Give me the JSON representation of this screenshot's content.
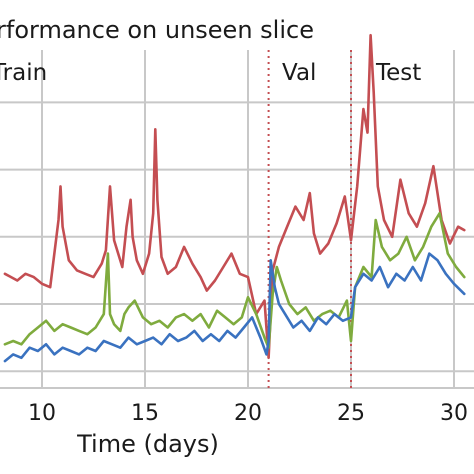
{
  "chart_data": {
    "type": "line",
    "title": "rformance on unseen slice",
    "xlabel": "Time (days)",
    "ylabel": "",
    "xlim": [
      8.2,
      30.5
    ],
    "ylim": [
      0,
      1
    ],
    "x_ticks": [
      10,
      15,
      20,
      25,
      30
    ],
    "x_tick_labels": [
      "10",
      "15",
      "20",
      "25",
      "30"
    ],
    "y_gridlines": [
      0.05,
      0.25,
      0.45,
      0.65,
      0.85
    ],
    "grid": true,
    "regions": [
      {
        "label": "Train",
        "x_start": 8.2,
        "x_end": 21.0
      },
      {
        "label": "Val",
        "x_start": 21.0,
        "x_end": 25.0
      },
      {
        "label": "Test",
        "x_start": 25.0,
        "x_end": 30.5
      }
    ],
    "boundaries": [
      21.0,
      25.0
    ],
    "boundary_color": "#c44e52",
    "series": [
      {
        "color": "#c44e52",
        "x": [
          8.2,
          8.5,
          8.8,
          9.2,
          9.6,
          10.0,
          10.4,
          10.8,
          10.9,
          11.0,
          11.3,
          11.7,
          12.1,
          12.5,
          12.9,
          13.1,
          13.3,
          13.5,
          13.9,
          14.1,
          14.3,
          14.4,
          14.6,
          14.9,
          15.2,
          15.4,
          15.5,
          15.6,
          15.8,
          16.1,
          16.5,
          16.9,
          17.3,
          17.7,
          18.0,
          18.4,
          18.8,
          19.2,
          19.6,
          20.0,
          20.4,
          20.8,
          21.0,
          21.2,
          21.5,
          21.9,
          22.3,
          22.7,
          23.0,
          23.2,
          23.5,
          23.9,
          24.3,
          24.7,
          25.0,
          25.3,
          25.6,
          25.8,
          25.95,
          26.1,
          26.3,
          26.6,
          27.0,
          27.4,
          27.8,
          28.2,
          28.6,
          29.0,
          29.4,
          29.8,
          30.2,
          30.5
        ],
        "values": [
          0.34,
          0.33,
          0.32,
          0.34,
          0.33,
          0.31,
          0.3,
          0.5,
          0.6,
          0.48,
          0.38,
          0.35,
          0.34,
          0.33,
          0.37,
          0.41,
          0.6,
          0.44,
          0.36,
          0.48,
          0.56,
          0.45,
          0.38,
          0.34,
          0.4,
          0.52,
          0.77,
          0.56,
          0.39,
          0.34,
          0.36,
          0.42,
          0.37,
          0.33,
          0.29,
          0.32,
          0.36,
          0.4,
          0.34,
          0.33,
          0.22,
          0.26,
          0.09,
          0.35,
          0.42,
          0.48,
          0.54,
          0.5,
          0.58,
          0.46,
          0.4,
          0.43,
          0.49,
          0.57,
          0.44,
          0.6,
          0.83,
          0.76,
          1.05,
          0.88,
          0.6,
          0.5,
          0.45,
          0.62,
          0.52,
          0.48,
          0.55,
          0.66,
          0.5,
          0.43,
          0.48,
          0.47
        ]
      },
      {
        "color": "#7fab3e",
        "x": [
          8.2,
          8.6,
          9.0,
          9.4,
          9.8,
          10.2,
          10.6,
          11.0,
          11.4,
          11.8,
          12.2,
          12.6,
          13.0,
          13.2,
          13.3,
          13.5,
          13.8,
          14.0,
          14.2,
          14.5,
          14.9,
          15.3,
          15.7,
          16.1,
          16.5,
          16.9,
          17.3,
          17.7,
          18.1,
          18.5,
          18.9,
          19.3,
          19.7,
          20.0,
          20.4,
          20.8,
          21.0,
          21.2,
          21.4,
          21.6,
          22.0,
          22.4,
          22.8,
          23.2,
          23.6,
          24.0,
          24.4,
          24.8,
          25.0,
          25.2,
          25.6,
          26.0,
          26.2,
          26.5,
          26.9,
          27.3,
          27.7,
          28.1,
          28.5,
          28.9,
          29.3,
          29.7,
          30.1,
          30.5
        ],
        "values": [
          0.13,
          0.14,
          0.13,
          0.16,
          0.18,
          0.2,
          0.17,
          0.19,
          0.18,
          0.17,
          0.16,
          0.18,
          0.22,
          0.4,
          0.22,
          0.19,
          0.17,
          0.22,
          0.24,
          0.26,
          0.21,
          0.19,
          0.2,
          0.18,
          0.21,
          0.22,
          0.2,
          0.22,
          0.18,
          0.23,
          0.21,
          0.19,
          0.21,
          0.27,
          0.22,
          0.15,
          0.12,
          0.28,
          0.36,
          0.32,
          0.25,
          0.22,
          0.24,
          0.2,
          0.22,
          0.23,
          0.21,
          0.26,
          0.14,
          0.3,
          0.36,
          0.33,
          0.5,
          0.42,
          0.38,
          0.4,
          0.45,
          0.38,
          0.42,
          0.48,
          0.52,
          0.4,
          0.36,
          0.33
        ]
      },
      {
        "color": "#3a72c0",
        "x": [
          8.2,
          8.6,
          9.0,
          9.4,
          9.8,
          10.2,
          10.6,
          11.0,
          11.4,
          11.8,
          12.2,
          12.6,
          13.0,
          13.4,
          13.8,
          14.2,
          14.6,
          15.0,
          15.4,
          15.8,
          16.2,
          16.6,
          17.0,
          17.4,
          17.8,
          18.2,
          18.6,
          19.0,
          19.4,
          19.8,
          20.2,
          20.6,
          20.9,
          21.0,
          21.1,
          21.3,
          21.5,
          21.8,
          22.2,
          22.6,
          23.0,
          23.4,
          23.8,
          24.2,
          24.6,
          25.0,
          25.2,
          25.6,
          26.0,
          26.4,
          26.8,
          27.2,
          27.6,
          28.0,
          28.4,
          28.8,
          29.2,
          29.6,
          30.0,
          30.5
        ],
        "values": [
          0.08,
          0.1,
          0.09,
          0.12,
          0.11,
          0.13,
          0.1,
          0.12,
          0.11,
          0.1,
          0.12,
          0.11,
          0.14,
          0.13,
          0.12,
          0.15,
          0.13,
          0.14,
          0.15,
          0.13,
          0.16,
          0.14,
          0.15,
          0.17,
          0.14,
          0.16,
          0.14,
          0.17,
          0.15,
          0.18,
          0.21,
          0.15,
          0.1,
          0.14,
          0.38,
          0.3,
          0.25,
          0.22,
          0.18,
          0.2,
          0.17,
          0.21,
          0.19,
          0.22,
          0.2,
          0.21,
          0.3,
          0.34,
          0.32,
          0.36,
          0.3,
          0.34,
          0.32,
          0.36,
          0.32,
          0.4,
          0.38,
          0.34,
          0.31,
          0.28
        ]
      }
    ]
  },
  "colors": {
    "grid": "#c8c8c8",
    "background": "#ffffff"
  }
}
